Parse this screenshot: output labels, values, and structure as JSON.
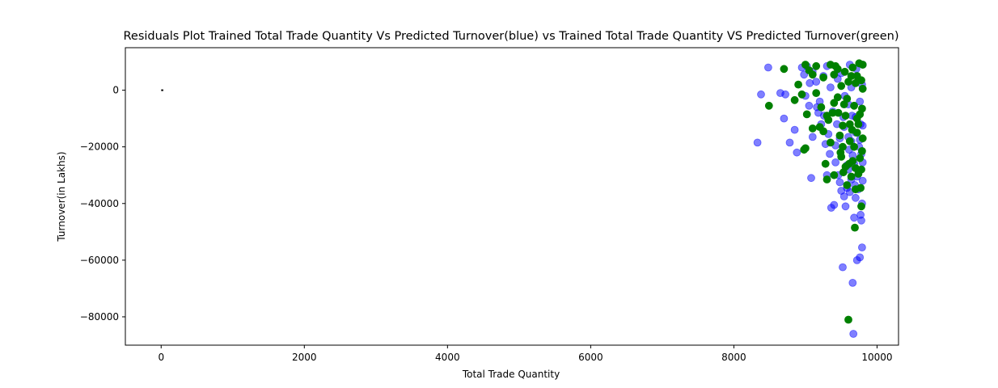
{
  "chart_data": {
    "type": "scatter",
    "title": "Residuals Plot Trained Total Trade Quantity Vs Predicted Turnover(blue) vs Trained Total Trade Quantity VS Predicted Turnover(green)",
    "xlabel": "Total Trade Quantity",
    "ylabel": "Turnover(in Lakhs)",
    "xlim": [
      -500,
      10300
    ],
    "ylim": [
      -90000,
      15000
    ],
    "xticks": [
      0,
      2000,
      4000,
      6000,
      8000,
      10000
    ],
    "yticks": [
      0,
      -20000,
      -40000,
      -60000,
      -80000
    ],
    "grid": false,
    "legend": "none",
    "hline": {
      "y": 0,
      "xmin": 0,
      "xmax": 30
    },
    "series": [
      {
        "color": "#0000ff",
        "alpha": 0.5,
        "points": [
          [
            8330,
            -18500
          ],
          [
            8380,
            -1500
          ],
          [
            8480,
            8000
          ],
          [
            8650,
            -1000
          ],
          [
            8700,
            -10000
          ],
          [
            8720,
            -1500
          ],
          [
            8780,
            -18500
          ],
          [
            8850,
            -14000
          ],
          [
            8880,
            -22000
          ],
          [
            8950,
            8000
          ],
          [
            9000,
            -2000
          ],
          [
            9050,
            -5500
          ],
          [
            9080,
            -31000
          ],
          [
            9100,
            -16500
          ],
          [
            9150,
            3000
          ],
          [
            9180,
            -8000
          ],
          [
            9220,
            -12000
          ],
          [
            9250,
            5000
          ],
          [
            9280,
            -19000
          ],
          [
            9300,
            -30000
          ],
          [
            9320,
            -15500
          ],
          [
            9340,
            -22500
          ],
          [
            9360,
            -41500
          ],
          [
            9400,
            -40500
          ],
          [
            9420,
            -25500
          ],
          [
            9440,
            -12000
          ],
          [
            9460,
            -30000
          ],
          [
            9480,
            -32500
          ],
          [
            9500,
            -35500
          ],
          [
            9520,
            -62500
          ],
          [
            9540,
            -37500
          ],
          [
            9560,
            -41000
          ],
          [
            9580,
            -34500
          ],
          [
            9600,
            -28000
          ],
          [
            9620,
            -36000
          ],
          [
            9640,
            -18000
          ],
          [
            9660,
            -68000
          ],
          [
            9670,
            -86000
          ],
          [
            9680,
            -45000
          ],
          [
            9700,
            -38000
          ],
          [
            9720,
            -60000
          ],
          [
            9740,
            -35000
          ],
          [
            9760,
            -59000
          ],
          [
            9770,
            -44000
          ],
          [
            9780,
            -46000
          ],
          [
            9790,
            -55500
          ],
          [
            9800,
            -25500
          ],
          [
            9800,
            -32000
          ],
          [
            9790,
            -40000
          ],
          [
            9600,
            -5000
          ],
          [
            9650,
            -9000
          ],
          [
            9700,
            -15000
          ],
          [
            9750,
            -20000
          ],
          [
            9550,
            -2000
          ],
          [
            9500,
            6000
          ],
          [
            9450,
            4000
          ],
          [
            9350,
            1000
          ],
          [
            9300,
            8500
          ],
          [
            9200,
            -4000
          ],
          [
            9100,
            6500
          ],
          [
            9680,
            -26000
          ],
          [
            9720,
            -30500
          ],
          [
            9610,
            -21000
          ],
          [
            9580,
            -26500
          ],
          [
            9640,
            -31500
          ],
          [
            9690,
            -33500
          ],
          [
            9740,
            -28500
          ],
          [
            9780,
            -22500
          ],
          [
            9770,
            -12000
          ],
          [
            9760,
            -4000
          ],
          [
            9790,
            2000
          ],
          [
            9800,
            9000
          ],
          [
            9710,
            7500
          ],
          [
            9620,
            9000
          ],
          [
            9530,
            -9500
          ],
          [
            9480,
            -17000
          ],
          [
            9420,
            -19500
          ],
          [
            9380,
            -7500
          ],
          [
            9260,
            -9000
          ],
          [
            9160,
            -6000
          ],
          [
            9060,
            2500
          ],
          [
            9020,
            8500
          ],
          [
            8980,
            5500
          ],
          [
            9540,
            -13000
          ],
          [
            9600,
            -16500
          ],
          [
            9660,
            -23000
          ],
          [
            9700,
            -9500
          ],
          [
            9760,
            -17500
          ],
          [
            9800,
            -12500
          ],
          [
            9640,
            1000
          ]
        ]
      },
      {
        "color": "#008000",
        "alpha": 1,
        "points": [
          [
            8490,
            -5500
          ],
          [
            8700,
            7500
          ],
          [
            8850,
            -3500
          ],
          [
            8900,
            2000
          ],
          [
            8950,
            -1500
          ],
          [
            8980,
            -21000
          ],
          [
            9000,
            -20500
          ],
          [
            9020,
            -8500
          ],
          [
            9050,
            7000
          ],
          [
            9100,
            -13500
          ],
          [
            9150,
            -1000
          ],
          [
            9200,
            -13000
          ],
          [
            9220,
            -6000
          ],
          [
            9250,
            4500
          ],
          [
            9280,
            -26000
          ],
          [
            9300,
            -31500
          ],
          [
            9320,
            -10500
          ],
          [
            9350,
            -18500
          ],
          [
            9380,
            -8000
          ],
          [
            9400,
            -30000
          ],
          [
            9420,
            8500
          ],
          [
            9450,
            -2500
          ],
          [
            9480,
            -16000
          ],
          [
            9500,
            -23500
          ],
          [
            9520,
            -20000
          ],
          [
            9540,
            -5000
          ],
          [
            9560,
            -27000
          ],
          [
            9580,
            -33500
          ],
          [
            9600,
            -81000
          ],
          [
            9620,
            -12000
          ],
          [
            9640,
            5000
          ],
          [
            9660,
            -25000
          ],
          [
            9680,
            -20000
          ],
          [
            9690,
            -48500
          ],
          [
            9700,
            -35000
          ],
          [
            9720,
            -15000
          ],
          [
            9740,
            -29500
          ],
          [
            9750,
            9500
          ],
          [
            9760,
            -8500
          ],
          [
            9770,
            -34500
          ],
          [
            9780,
            -41000
          ],
          [
            9790,
            -21500
          ],
          [
            9800,
            500
          ],
          [
            9800,
            9000
          ],
          [
            9780,
            -28000
          ],
          [
            9760,
            -24000
          ],
          [
            9720,
            -10000
          ],
          [
            9700,
            2500
          ],
          [
            9650,
            -14000
          ],
          [
            9600,
            3000
          ],
          [
            9550,
            6500
          ],
          [
            9500,
            1500
          ],
          [
            9450,
            7500
          ],
          [
            9400,
            -4500
          ],
          [
            9350,
            9000
          ],
          [
            9300,
            -9000
          ],
          [
            9250,
            -14500
          ],
          [
            9150,
            8500
          ],
          [
            9100,
            5500
          ],
          [
            9000,
            9000
          ],
          [
            9560,
            -9000
          ],
          [
            9620,
            -18000
          ],
          [
            9680,
            -5500
          ],
          [
            9740,
            -12000
          ],
          [
            9800,
            -17000
          ],
          [
            9790,
            -6500
          ],
          [
            9700,
            -27500
          ],
          [
            9640,
            -30500
          ],
          [
            9580,
            -3000
          ],
          [
            9520,
            -12500
          ],
          [
            9460,
            -8000
          ],
          [
            9400,
            5500
          ],
          [
            9660,
            8000
          ],
          [
            9720,
            5000
          ],
          [
            9780,
            3500
          ],
          [
            9610,
            -26000
          ],
          [
            9530,
            -29000
          ],
          [
            9490,
            -22000
          ]
        ]
      }
    ]
  }
}
